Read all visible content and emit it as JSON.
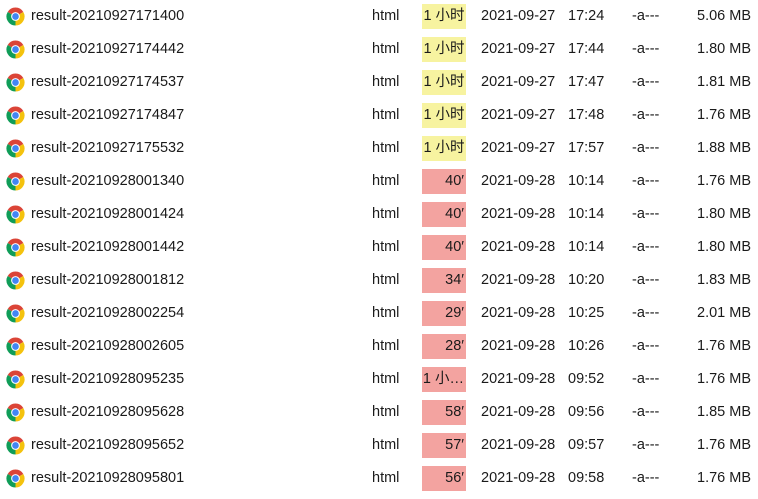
{
  "colors": {
    "age_recent": "#f7f3a0",
    "age_older": "#f3a3a0",
    "chrome_red": "#db4437",
    "chrome_green": "#0f9d58",
    "chrome_yellow": "#f4c20d",
    "chrome_blue": "#4285f4"
  },
  "icon": "chrome-browser-icon",
  "files": [
    {
      "name": "result-20210927171400",
      "ext": "html",
      "age": "1 小时",
      "age_level": "recent",
      "date": "2021-09-27",
      "time": "17:24",
      "mode": "-a---",
      "size": "5.06 MB"
    },
    {
      "name": "result-20210927174442",
      "ext": "html",
      "age": "1 小时",
      "age_level": "recent",
      "date": "2021-09-27",
      "time": "17:44",
      "mode": "-a---",
      "size": "1.80 MB"
    },
    {
      "name": "result-20210927174537",
      "ext": "html",
      "age": "1 小时",
      "age_level": "recent",
      "date": "2021-09-27",
      "time": "17:47",
      "mode": "-a---",
      "size": "1.81 MB"
    },
    {
      "name": "result-20210927174847",
      "ext": "html",
      "age": "1 小时",
      "age_level": "recent",
      "date": "2021-09-27",
      "time": "17:48",
      "mode": "-a---",
      "size": "1.76 MB"
    },
    {
      "name": "result-20210927175532",
      "ext": "html",
      "age": "1 小时",
      "age_level": "recent",
      "date": "2021-09-27",
      "time": "17:57",
      "mode": "-a---",
      "size": "1.88 MB"
    },
    {
      "name": "result-20210928001340",
      "ext": "html",
      "age": "40′",
      "age_level": "older",
      "date": "2021-09-28",
      "time": "10:14",
      "mode": "-a---",
      "size": "1.76 MB"
    },
    {
      "name": "result-20210928001424",
      "ext": "html",
      "age": "40′",
      "age_level": "older",
      "date": "2021-09-28",
      "time": "10:14",
      "mode": "-a---",
      "size": "1.80 MB"
    },
    {
      "name": "result-20210928001442",
      "ext": "html",
      "age": "40′",
      "age_level": "older",
      "date": "2021-09-28",
      "time": "10:14",
      "mode": "-a---",
      "size": "1.80 MB"
    },
    {
      "name": "result-20210928001812",
      "ext": "html",
      "age": "34′",
      "age_level": "older",
      "date": "2021-09-28",
      "time": "10:20",
      "mode": "-a---",
      "size": "1.83 MB"
    },
    {
      "name": "result-20210928002254",
      "ext": "html",
      "age": "29′",
      "age_level": "older",
      "date": "2021-09-28",
      "time": "10:25",
      "mode": "-a---",
      "size": "2.01 MB"
    },
    {
      "name": "result-20210928002605",
      "ext": "html",
      "age": "28′",
      "age_level": "older",
      "date": "2021-09-28",
      "time": "10:26",
      "mode": "-a---",
      "size": "1.76 MB"
    },
    {
      "name": "result-20210928095235",
      "ext": "html",
      "age": "1 小…",
      "age_level": "older",
      "date": "2021-09-28",
      "time": "09:52",
      "mode": "-a---",
      "size": "1.76 MB"
    },
    {
      "name": "result-20210928095628",
      "ext": "html",
      "age": "58′",
      "age_level": "older",
      "date": "2021-09-28",
      "time": "09:56",
      "mode": "-a---",
      "size": "1.85 MB"
    },
    {
      "name": "result-20210928095652",
      "ext": "html",
      "age": "57′",
      "age_level": "older",
      "date": "2021-09-28",
      "time": "09:57",
      "mode": "-a---",
      "size": "1.76 MB"
    },
    {
      "name": "result-20210928095801",
      "ext": "html",
      "age": "56′",
      "age_level": "older",
      "date": "2021-09-28",
      "time": "09:58",
      "mode": "-a---",
      "size": "1.76 MB"
    }
  ]
}
